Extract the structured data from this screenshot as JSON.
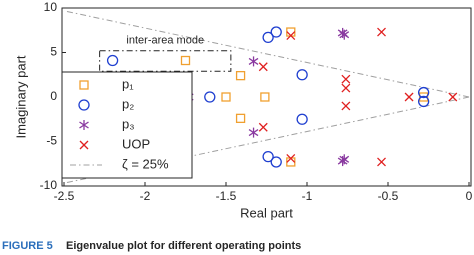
{
  "chart_data": {
    "type": "scatter",
    "xlabel": "Real part",
    "ylabel": "Imaginary part",
    "xlim": [
      -2.5,
      0
    ],
    "ylim": [
      -10,
      10
    ],
    "xticks": [
      -2.5,
      -2,
      -1.5,
      -1,
      -0.5,
      0
    ],
    "yticks": [
      -10,
      -5,
      0,
      5,
      10
    ],
    "grid": false,
    "legend": "left",
    "series": [
      {
        "name": "p₁",
        "color": "#f0a030",
        "marker": "square",
        "x": [
          -1.75,
          -1.75,
          -1.41,
          -1.41,
          -1.5,
          -1.26,
          -1.1,
          -1.1,
          -0.28
        ],
        "y": [
          4.1,
          -3.8,
          2.4,
          -2.4,
          0,
          0,
          7.3,
          -7.3,
          0
        ]
      },
      {
        "name": "p₂",
        "color": "#1f3fd0",
        "marker": "circle",
        "x": [
          -2.2,
          -1.6,
          -1.24,
          -1.19,
          -1.24,
          -1.19,
          -1.03,
          -1.03,
          -0.28,
          -0.28
        ],
        "y": [
          4.1,
          0,
          6.7,
          7.3,
          -6.7,
          -7.3,
          2.5,
          -2.5,
          0.5,
          -0.5
        ]
      },
      {
        "name": "p₃",
        "color": "#8a3aa0",
        "marker": "asterisk",
        "x": [
          -1.73,
          -1.33,
          -1.33,
          -0.78,
          -0.77,
          -0.78,
          -0.77
        ],
        "y": [
          0,
          4,
          -4,
          7.2,
          7,
          -7.2,
          -7
        ]
      },
      {
        "name": "UOP",
        "color": "#e02020",
        "marker": "x",
        "x": [
          -1.27,
          -1.27,
          -1.1,
          -1.1,
          -0.76,
          -0.76,
          -0.76,
          -0.54,
          -0.54,
          -0.37,
          -0.1
        ],
        "y": [
          3.4,
          -3.4,
          6.9,
          -6.9,
          2,
          1,
          -1,
          7.3,
          -7.3,
          0,
          0
        ]
      }
    ],
    "damping": {
      "name": "ζ = 25%",
      "value": 25,
      "color": "#a0a0a0"
    },
    "annotation": {
      "text": "inter-area mode",
      "xlim": [
        -2.28,
        -1.47
      ],
      "ylim": [
        2.9,
        5.2
      ]
    },
    "caption": {
      "label": "FIGURE 5",
      "text": "Eigenvalue plot for different operating points"
    }
  }
}
